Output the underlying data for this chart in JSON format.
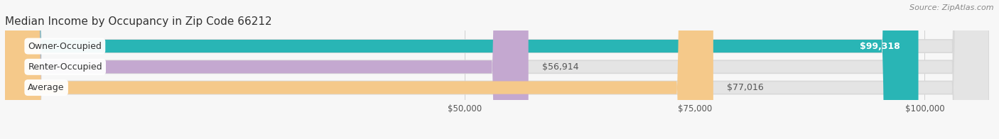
{
  "title": "Median Income by Occupancy in Zip Code 66212",
  "source": "Source: ZipAtlas.com",
  "categories": [
    "Owner-Occupied",
    "Renter-Occupied",
    "Average"
  ],
  "values": [
    99318,
    56914,
    77016
  ],
  "labels": [
    "$99,318",
    "$56,914",
    "$77,016"
  ],
  "bar_colors": [
    "#29b5b5",
    "#c4a8d0",
    "#f5c98a"
  ],
  "background_color": "#f7f7f7",
  "bar_bg_color": "#e4e4e4",
  "xlim": [
    0,
    107000
  ],
  "xticks": [
    50000,
    75000,
    100000
  ],
  "xtick_labels": [
    "$50,000",
    "$75,000",
    "$100,000"
  ],
  "title_fontsize": 11,
  "source_fontsize": 8,
  "label_fontsize": 9,
  "category_fontsize": 9,
  "bar_height": 0.62,
  "grid_color": "#d0d0d0",
  "value_label_colors": [
    "#ffffff",
    "#666666",
    "#666666"
  ]
}
